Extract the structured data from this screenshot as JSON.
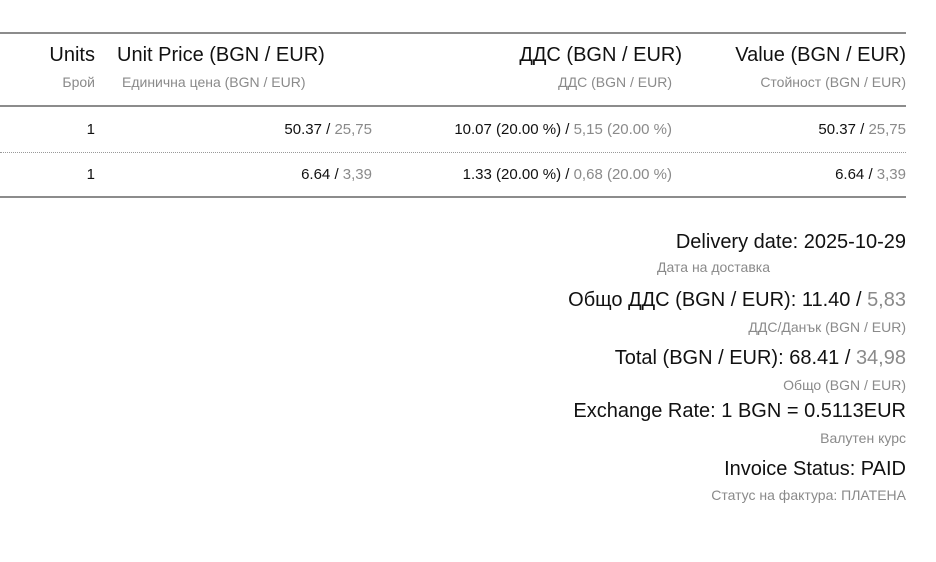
{
  "table": {
    "headers": [
      {
        "title": "Units",
        "subtitle": "Брой"
      },
      {
        "title": "Unit Price (BGN / EUR)",
        "subtitle": "Единична цена (BGN / EUR)"
      },
      {
        "title": "ДДС (BGN / EUR)",
        "subtitle": "ДДС (BGN / EUR)"
      },
      {
        "title": "Value (BGN / EUR)",
        "subtitle": "Стойност (BGN / EUR)"
      }
    ],
    "rows": [
      {
        "units": "1",
        "price_bgn": "50.37",
        "price_eur": "25,75",
        "vat_bgn": "10.07 (20.00 %)",
        "vat_eur": "5,15 (20.00 %)",
        "value_bgn": "50.37",
        "value_eur": "25,75"
      },
      {
        "units": "1",
        "price_bgn": "6.64",
        "price_eur": "3,39",
        "vat_bgn": "1.33 (20.00 %)",
        "vat_eur": "0,68 (20.00 %)",
        "value_bgn": "6.64",
        "value_eur": "3,39"
      }
    ],
    "separator": " / "
  },
  "summary": {
    "delivery": {
      "label": "Delivery date: 2025-10-29",
      "subtitle": "Дата на доставка"
    },
    "vat_total": {
      "label": "Общо ДДС (BGN / EUR): 11.40 / ",
      "eur": "5,83",
      "subtitle": "ДДС/Данък (BGN / EUR)"
    },
    "total": {
      "label": "Total (BGN / EUR): 68.41 / ",
      "eur": "34,98",
      "subtitle": "Общо (BGN / EUR)"
    },
    "exchange": {
      "label": "Exchange Rate: 1 BGN = 0.5113EUR",
      "subtitle": "Валутен курс"
    },
    "status": {
      "label": "Invoice Status: PAID",
      "subtitle": "Статус на фактура: ПЛАТЕНА"
    }
  }
}
